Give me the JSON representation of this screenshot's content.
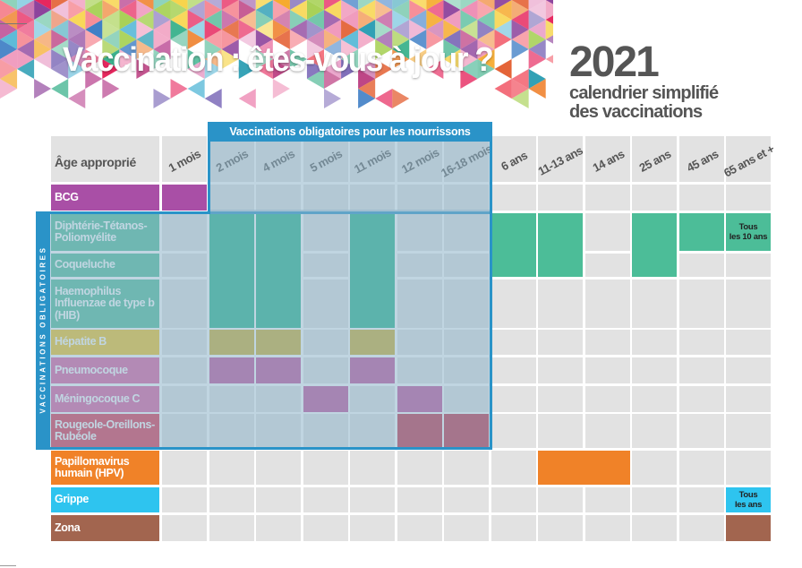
{
  "header": {
    "title": "Vaccination : êtes-vous à jour ?",
    "year": "2021",
    "subtitle_line1": "calendrier simplifié",
    "subtitle_line2": "des vaccinations"
  },
  "table": {
    "corner_label": "Âge approprié",
    "obligatoires_banner": "Vaccinations obligatoires pour les nourrissons",
    "side_label": "VACCINATIONS OBLIGATOIRES",
    "ages": [
      "1 mois",
      "2 mois",
      "4 mois",
      "5 mois",
      "11 mois",
      "12 mois",
      "16-18 mois",
      "6 ans",
      "11-13 ans",
      "14 ans",
      "25 ans",
      "45 ans",
      "65 ans et +"
    ],
    "rows": [
      {
        "id": "bcg",
        "lines": [
          "BCG"
        ],
        "color": "#a94fa6"
      },
      {
        "id": "dtp",
        "lines": [
          "Diphtérie-Tétanos-",
          "Poliomyélite"
        ],
        "color": "#4cbd98"
      },
      {
        "id": "coqueluche",
        "lines": [
          "Coqueluche"
        ],
        "color": "#4cbd98"
      },
      {
        "id": "hib",
        "lines": [
          "Haemophilus",
          "Influenzae de type b",
          "(HIB)"
        ],
        "color": "#4cbd98"
      },
      {
        "id": "hepb",
        "lines": [
          "Hépatite B"
        ],
        "color": "#f7c31b"
      },
      {
        "id": "pneumo",
        "lines": [
          "Pneumocoque"
        ],
        "color": "#e25a9e"
      },
      {
        "id": "meningo",
        "lines": [
          "Méningocoque C"
        ],
        "color": "#e25a9e"
      },
      {
        "id": "ror",
        "lines": [
          "Rougeole-Oreillons-",
          "Rubéole"
        ],
        "color": "#e22d4a"
      },
      {
        "id": "hpv",
        "lines": [
          "Papillomavirus",
          "humain (HPV)"
        ],
        "color": "#f08228"
      },
      {
        "id": "grippe",
        "lines": [
          "Grippe"
        ],
        "color": "#2ec4ef"
      },
      {
        "id": "zona",
        "lines": [
          "Zona"
        ],
        "color": "#a2654f"
      }
    ],
    "notes": {
      "tous_10_ans": [
        "Tous",
        "les 10 ans"
      ],
      "tous_les_ans": [
        "Tous",
        "les ans"
      ]
    }
  },
  "colors": {
    "accent_blue": "#2a93c8",
    "grey_text": "#555555",
    "cell_grey": "#e2e2e2",
    "green_in_box": "#22b38b",
    "green_out_box": "#4cbd98",
    "gold": "#d0ad2a",
    "magenta_in_box": "#c34e9a",
    "crimson_in_box": "#c42a43",
    "purple": "#a94fa6",
    "orange": "#f08228",
    "cyan": "#2ec4ef",
    "brown": "#a2654f"
  }
}
